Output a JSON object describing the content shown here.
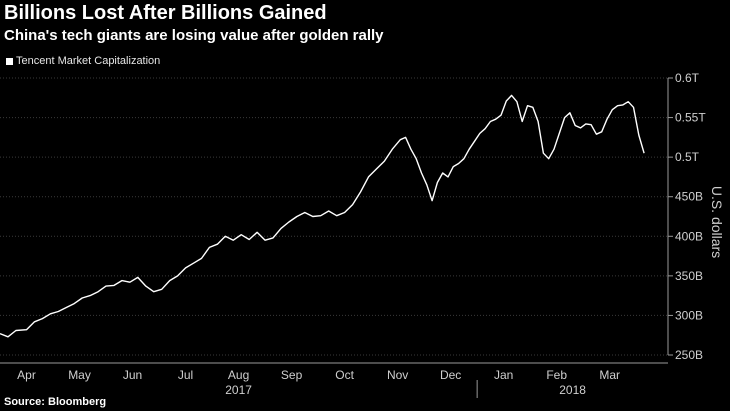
{
  "title": "Billions Lost After Billions Gained",
  "subtitle": "China's tech giants are losing value after golden rally",
  "legend_label": "Tencent Market Capitalization",
  "source": "Source: Bloomberg",
  "colors": {
    "background": "#000000",
    "line": "#ffffff",
    "text": "#cfcfcf"
  },
  "chart_data": {
    "type": "line",
    "title": "Tencent Market Capitalization",
    "xlabel": "",
    "ylabel": "U.S. dollars",
    "ylim": [
      250,
      600
    ],
    "yticks": [
      250,
      300,
      350,
      400,
      450,
      500,
      550,
      600
    ],
    "ytick_labels": [
      "250B",
      "300B",
      "350B",
      "400B",
      "450B",
      "0.5T",
      "0.55T",
      "0.6T"
    ],
    "xlim": [
      0,
      12.6
    ],
    "month_ticks": [
      {
        "x": 0.5,
        "label": "Apr"
      },
      {
        "x": 1.5,
        "label": "May"
      },
      {
        "x": 2.5,
        "label": "Jun"
      },
      {
        "x": 3.5,
        "label": "Jul"
      },
      {
        "x": 4.5,
        "label": "Aug"
      },
      {
        "x": 5.5,
        "label": "Sep"
      },
      {
        "x": 6.5,
        "label": "Oct"
      },
      {
        "x": 7.5,
        "label": "Nov"
      },
      {
        "x": 8.5,
        "label": "Dec"
      },
      {
        "x": 9.5,
        "label": "Jan"
      },
      {
        "x": 10.5,
        "label": "Feb"
      },
      {
        "x": 11.5,
        "label": "Mar"
      }
    ],
    "year_labels": [
      {
        "x": 4.5,
        "label": "2017"
      },
      {
        "x": 10.8,
        "label": "2018"
      }
    ],
    "year_divider": 9.0,
    "series": [
      {
        "name": "Tencent Market Capitalization",
        "x": [
          0.0,
          0.15,
          0.3,
          0.5,
          0.65,
          0.8,
          0.95,
          1.1,
          1.25,
          1.4,
          1.55,
          1.7,
          1.85,
          2.0,
          2.15,
          2.3,
          2.45,
          2.6,
          2.75,
          2.9,
          3.05,
          3.2,
          3.35,
          3.5,
          3.65,
          3.8,
          3.95,
          4.1,
          4.25,
          4.4,
          4.55,
          4.7,
          4.85,
          5.0,
          5.15,
          5.3,
          5.45,
          5.6,
          5.75,
          5.9,
          6.05,
          6.2,
          6.35,
          6.5,
          6.65,
          6.8,
          6.95,
          7.1,
          7.25,
          7.4,
          7.55,
          7.65,
          7.75,
          7.85,
          7.95,
          8.05,
          8.15,
          8.25,
          8.35,
          8.45,
          8.55,
          8.65,
          8.75,
          8.85,
          8.95,
          9.05,
          9.15,
          9.25,
          9.35,
          9.45,
          9.55,
          9.65,
          9.75,
          9.85,
          9.95,
          10.05,
          10.15,
          10.25,
          10.35,
          10.45,
          10.55,
          10.65,
          10.75,
          10.85,
          10.95,
          11.05,
          11.15,
          11.25,
          11.35,
          11.45,
          11.55,
          11.65,
          11.75,
          11.85,
          11.95,
          12.05,
          12.15
        ],
        "values": [
          277,
          273,
          281,
          282,
          292,
          296,
          302,
          305,
          310,
          315,
          322,
          325,
          330,
          337,
          338,
          344,
          342,
          348,
          337,
          330,
          333,
          344,
          350,
          360,
          366,
          372,
          386,
          390,
          400,
          395,
          402,
          396,
          405,
          395,
          398,
          410,
          418,
          425,
          430,
          425,
          426,
          432,
          426,
          430,
          440,
          456,
          475,
          485,
          495,
          510,
          522,
          525,
          510,
          498,
          480,
          465,
          445,
          468,
          480,
          475,
          488,
          492,
          498,
          510,
          520,
          530,
          536,
          545,
          548,
          553,
          571,
          578,
          570,
          545,
          565,
          563,
          545,
          505,
          498,
          510,
          530,
          550,
          556,
          540,
          537,
          542,
          541,
          529,
          532,
          548,
          560,
          565,
          566,
          570,
          563,
          528,
          505
        ]
      }
    ]
  }
}
